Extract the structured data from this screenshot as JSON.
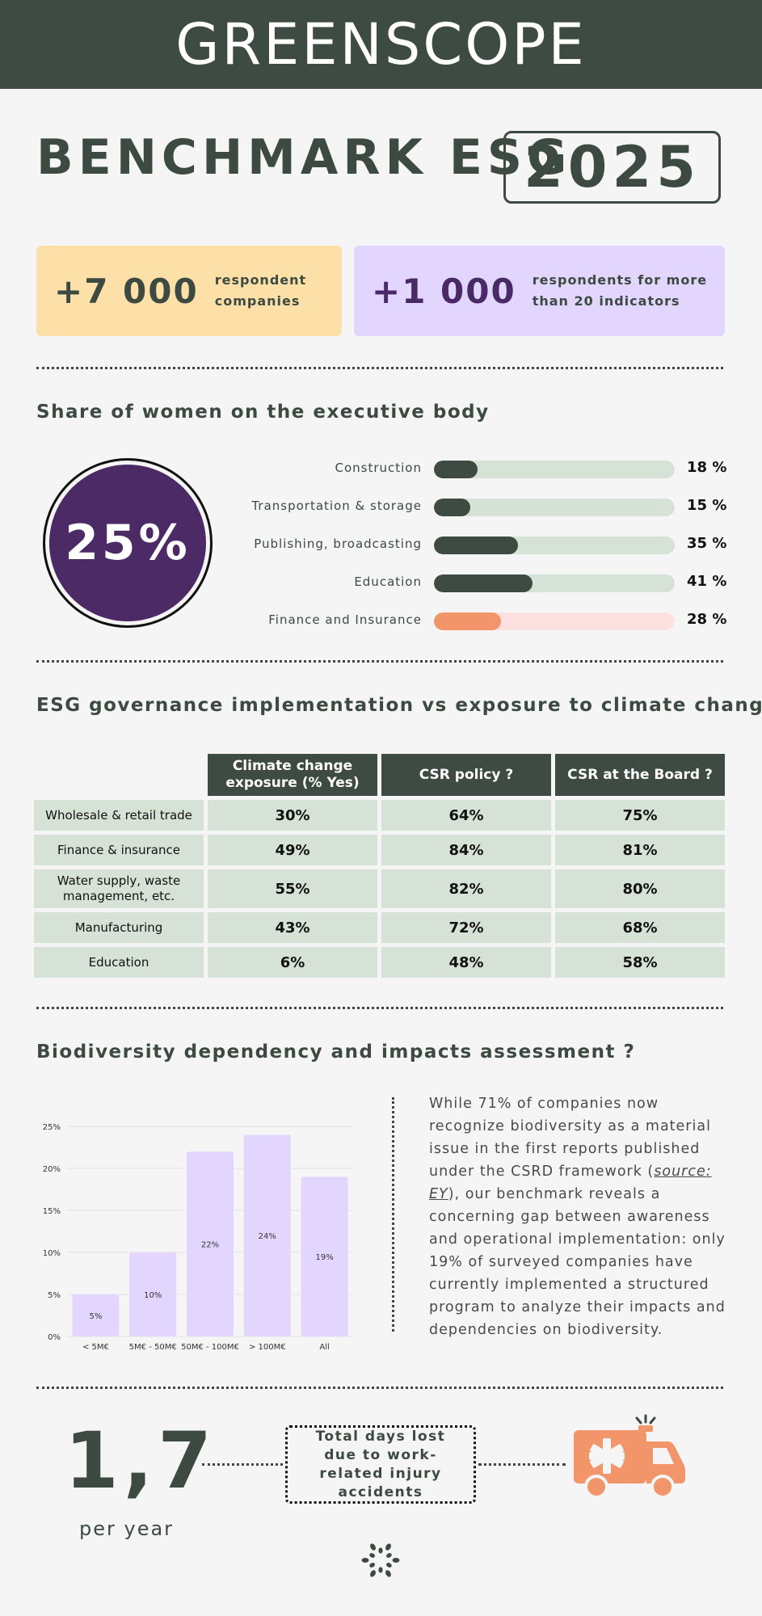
{
  "header": {
    "brand": "GREENSCOPE"
  },
  "hero": {
    "title": "BENCHMARK ESG",
    "year": "2025"
  },
  "stats": [
    {
      "value": "+7 000",
      "label_line1": "respondent",
      "label_line2": "companies"
    },
    {
      "value": "+1 000",
      "label_line1": "respondents for more",
      "label_line2": "than 20 indicators"
    }
  ],
  "women": {
    "title": "Share of women on the executive body",
    "overall": "25%",
    "rows": [
      {
        "label": "Construction",
        "value": "18 %",
        "pct": 18
      },
      {
        "label": "Transportation & storage",
        "value": "15 %",
        "pct": 15
      },
      {
        "label": "Publishing, broadcasting",
        "value": "35 %",
        "pct": 35
      },
      {
        "label": "Education",
        "value": "41 %",
        "pct": 41
      },
      {
        "label": "Finance and Insurance",
        "value": "28 %",
        "pct": 28
      }
    ]
  },
  "governance": {
    "title": "ESG governance implementation vs exposure to climate change",
    "columns": [
      "Climate change exposure (% Yes)",
      "CSR policy ?",
      "CSR at the Board ?"
    ],
    "rows": [
      {
        "label": "Wholesale & retail trade",
        "values": [
          "30%",
          "64%",
          "75%"
        ]
      },
      {
        "label": "Finance & insurance",
        "values": [
          "49%",
          "84%",
          "81%"
        ]
      },
      {
        "label": "Water supply, waste management, etc.",
        "values": [
          "55%",
          "82%",
          "80%"
        ]
      },
      {
        "label": "Manufacturing",
        "values": [
          "43%",
          "72%",
          "68%"
        ]
      },
      {
        "label": "Education",
        "values": [
          "6%",
          "48%",
          "58%"
        ]
      }
    ]
  },
  "biodiversity": {
    "title": "Biodiversity dependency and impacts assessment ?",
    "text_before": "While 71% of companies now recognize biodiversity as a material issue in the first reports published under the CSRD framework (",
    "source": "source: EY",
    "text_after": "), our benchmark reveals a concerning gap between awareness and operational implementation: only 19% of surveyed companies have currently implemented a structured program to analyze their impacts and dependencies on biodiversity."
  },
  "chart_data": {
    "type": "bar",
    "categories": [
      "< 5M€",
      "5M€ - 50M€",
      "50M€ - 100M€",
      "> 100M€",
      "All"
    ],
    "values": [
      5,
      10,
      22,
      24,
      19
    ],
    "value_labels": [
      "5%",
      "10%",
      "22%",
      "24%",
      "19%"
    ],
    "ytick_labels": [
      "0%",
      "5%",
      "10%",
      "15%",
      "20%",
      "25%"
    ],
    "ylim": [
      0,
      25
    ],
    "title": "",
    "xlabel": "",
    "ylabel": "",
    "grid": true,
    "bar_color": "#e2d6ff"
  },
  "injury": {
    "value": "1,7",
    "unit": "per year",
    "label": "Total days lost due to work-related injury accidents"
  },
  "colors": {
    "dark_green": "#3e4b42",
    "light_green": "#d7e2d6",
    "purple": "#4b2a66",
    "lavender": "#e2d6ff",
    "yellow": "#fde0a8",
    "salmon": "#f2956a",
    "pink": "#fde1e1"
  }
}
